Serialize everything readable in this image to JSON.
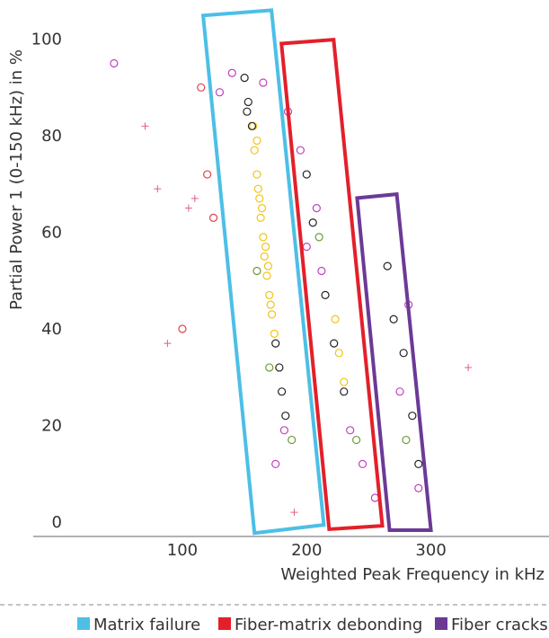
{
  "chart_data": {
    "type": "scatter",
    "x_label": "Weighted Peak Frequency in kHz",
    "y_label": "Partial Power 1 (0-150 kHz) in %",
    "xlim": [
      -20,
      395
    ],
    "ylim": [
      0,
      110
    ],
    "xticks": [
      100,
      200,
      300
    ],
    "yticks": [
      0,
      20,
      40,
      60,
      80,
      100
    ],
    "grid": true,
    "series": [
      {
        "color": "#f2c416",
        "marker": "circle",
        "x": [
          158,
          160,
          162,
          163,
          165,
          166,
          168,
          170,
          172,
          174,
          161,
          164,
          167,
          169,
          223,
          226,
          230,
          160,
          157,
          171
        ],
        "y": [
          80,
          75,
          70,
          66,
          62,
          58,
          54,
          50,
          46,
          42,
          72,
          68,
          60,
          56,
          45,
          38,
          32,
          82,
          85,
          48
        ]
      },
      {
        "color": "#222222",
        "marker": "circle",
        "x": [
          150,
          153,
          156,
          175,
          178,
          180,
          183,
          200,
          205,
          215,
          222,
          230,
          265,
          270,
          278,
          285,
          290,
          152
        ],
        "y": [
          95,
          90,
          85,
          40,
          35,
          30,
          25,
          75,
          65,
          50,
          40,
          30,
          56,
          45,
          38,
          25,
          15,
          88
        ]
      },
      {
        "color": "#c040c0",
        "marker": "circle",
        "x": [
          140,
          165,
          185,
          195,
          208,
          212,
          235,
          245,
          255,
          275,
          290,
          182,
          175,
          130,
          200,
          282,
          45
        ],
        "y": [
          96,
          94,
          88,
          80,
          68,
          55,
          22,
          15,
          8,
          30,
          10,
          22,
          15,
          92,
          60,
          48,
          98
        ]
      },
      {
        "color": "#6a9a3a",
        "marker": "circle",
        "x": [
          170,
          188,
          240,
          280,
          210,
          160
        ],
        "y": [
          35,
          20,
          20,
          20,
          62,
          55
        ]
      },
      {
        "color": "#e04050",
        "marker": "circle",
        "x": [
          120,
          125,
          100,
          115
        ],
        "y": [
          75,
          66,
          43,
          93
        ]
      },
      {
        "color": "#e06080",
        "marker": "plus",
        "x": [
          70,
          80,
          110,
          88,
          190,
          330,
          105
        ],
        "y": [
          85,
          72,
          70,
          40,
          5,
          35,
          68
        ]
      }
    ],
    "regions": [
      {
        "name": "Matrix failure",
        "color": "#4dbfe6",
        "x": [
          116.7,
          171.7,
          213.8,
          158
        ],
        "y": [
          107.9,
          109,
          2.4,
          0.7
        ]
      },
      {
        "name": "Fiber-matrix debonding",
        "color": "#e3202a",
        "x": [
          179.7,
          221.7,
          260.9,
          218.1
        ],
        "y": [
          102.1,
          102.9,
          2.2,
          1.5
        ]
      },
      {
        "name": "Fiber cracks",
        "color": "#6b3a96",
        "x": [
          240.6,
          272.5,
          300,
          266.7
        ],
        "y": [
          70.1,
          70.9,
          1.3,
          1.3
        ]
      }
    ]
  }
}
